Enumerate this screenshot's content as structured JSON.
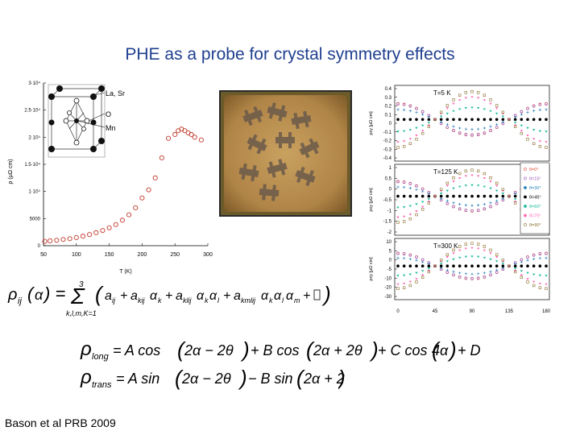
{
  "slide": {
    "title": "PHE as a probe for crystal symmetry effects",
    "citation": "Bason et al PRB 2009"
  },
  "left_plot": {
    "ytick_labels": [
      "3·10⁴",
      "2.5·10⁴",
      "2·10⁴",
      "1.5·10⁴",
      "1·10⁴",
      "5000",
      "0"
    ],
    "xtick_labels": [
      "50",
      "100",
      "150",
      "200",
      "250",
      "300"
    ],
    "ylabel": "ρ (μΩ cm)",
    "xlabel": "T (K)",
    "inset_labels": [
      "La, Sr",
      "O",
      "Mn"
    ]
  },
  "right_plot": {
    "panels": [
      {
        "label": "T=5 K",
        "ylabel": "ρxy [μΩ cm]",
        "ticks": [
          "0.4",
          "0.3",
          "0.2",
          "0.1",
          "0",
          "-0.1",
          "-0.2",
          "-0.3",
          "-0.4"
        ]
      },
      {
        "label": "T=125 K",
        "ylabel": "ρxy [μΩ cm]",
        "ticks": [
          "1",
          "0.5",
          "0",
          "-0.5",
          "-1",
          "-1.5",
          "-2"
        ]
      },
      {
        "label": "T=300 K",
        "ylabel": "ρxy [μΩ cm]",
        "ticks": [
          "10",
          "5",
          "0",
          "-5",
          "-10",
          "-20",
          "-30"
        ]
      }
    ],
    "xtick_labels": [
      "0",
      "45",
      "90",
      "135",
      "180"
    ],
    "legend": [
      "θ=0°",
      "θ=15°",
      "θ=30°",
      "θ=45°",
      "θ=60°",
      "θ=75°",
      "θ=90°"
    ]
  },
  "equations": {
    "general": "ρij(α) = Σ_{k,l,m,...=1}^{3} ( a_ij + a_kij α_k + a_klij α_k α_l + a_kmlij α_k α_l α_m + ... )",
    "long": "ρlong = A cos(2α − 2θ) + B cos(2α + 2θ) + C cos(4α) + D",
    "trans": "ρtrans = A sin(2α − 2θ) − B sin(2α + 2θ)"
  },
  "chart_data": [
    {
      "type": "scatter",
      "title": "",
      "xlabel": "T (K)",
      "ylabel": "ρ (μΩ cm)",
      "xlim": [
        50,
        300
      ],
      "ylim": [
        0,
        30000
      ],
      "grid": false,
      "x": [
        52,
        60,
        70,
        80,
        90,
        100,
        110,
        120,
        130,
        140,
        150,
        160,
        170,
        180,
        190,
        200,
        210,
        220,
        230,
        240,
        250,
        255,
        260,
        265,
        270,
        275,
        280,
        290
      ],
      "y": [
        800,
        900,
        1000,
        1150,
        1300,
        1500,
        1750,
        2050,
        2400,
        2800,
        3300,
        3900,
        4700,
        5700,
        7000,
        8800,
        10300,
        12500,
        16200,
        19800,
        20500,
        21200,
        21500,
        21200,
        20800,
        20500,
        20000,
        19500
      ]
    },
    {
      "type": "scatter",
      "xlabel": "",
      "ylabel": "ρxy [μΩ cm]",
      "xlim": [
        0,
        180
      ],
      "legend_placement": "right",
      "series_names": [
        "θ=0°",
        "θ=15°",
        "θ=30°",
        "θ=45°",
        "θ=60°",
        "θ=75°",
        "θ=90°"
      ]
    }
  ]
}
